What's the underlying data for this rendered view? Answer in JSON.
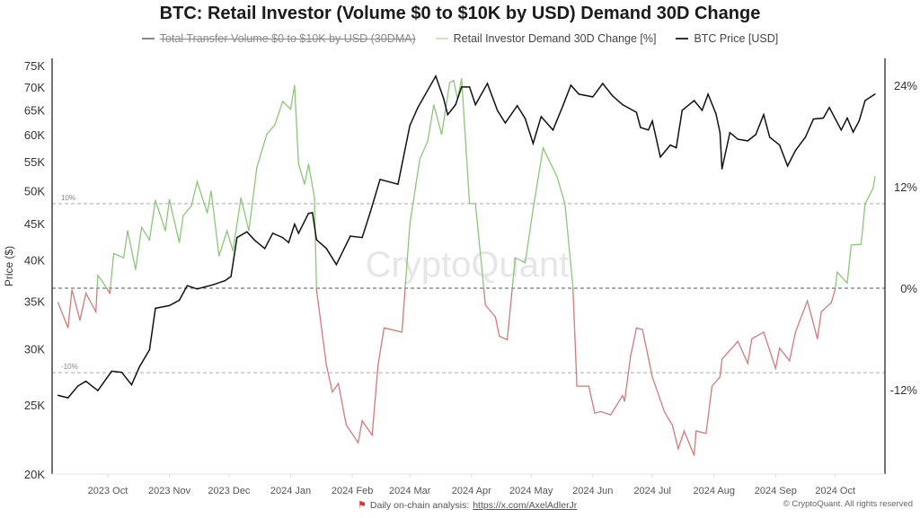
{
  "chart_data": {
    "type": "line",
    "title": "BTC: Retail Investor (Volume $0 to $10K by USD) Demand 30D Change",
    "legend": [
      {
        "name": "Total Transfer Volume $0 to $10K by USD (30DMA)",
        "color": "#888888",
        "hidden": true
      },
      {
        "name": "Retail Investor Demand 30D Change [%]",
        "color": "#8cc67a",
        "hidden": false
      },
      {
        "name": "BTC Price [USD]",
        "color": "#111111",
        "hidden": false
      }
    ],
    "legend_position": "top",
    "xlim": [
      "2023-09-03",
      "2024-10-26"
    ],
    "x_ticks": [
      {
        "date": "2023-10-01",
        "label": "2023 Oct"
      },
      {
        "date": "2023-11-01",
        "label": "2023 Nov"
      },
      {
        "date": "2023-12-01",
        "label": "2023 Dec"
      },
      {
        "date": "2024-01-01",
        "label": "2024 Jan"
      },
      {
        "date": "2024-02-01",
        "label": "2024 Feb"
      },
      {
        "date": "2024-03-01",
        "label": "2024 Mar"
      },
      {
        "date": "2024-04-01",
        "label": "2024 Apr"
      },
      {
        "date": "2024-05-01",
        "label": "2024 May"
      },
      {
        "date": "2024-06-01",
        "label": "2024 Jun"
      },
      {
        "date": "2024-07-01",
        "label": "2024 Jul"
      },
      {
        "date": "2024-08-01",
        "label": "2024 Aug"
      },
      {
        "date": "2024-09-01",
        "label": "2024 Sep"
      },
      {
        "date": "2024-10-01",
        "label": "2024 Oct"
      }
    ],
    "y_left": {
      "label": "Price ($)",
      "scale": "log",
      "range": [
        20000,
        76800
      ],
      "ticks": [
        {
          "value": 20000,
          "label": "20K"
        },
        {
          "value": 25000,
          "label": "25K"
        },
        {
          "value": 30000,
          "label": "30K"
        },
        {
          "value": 35000,
          "label": "35K"
        },
        {
          "value": 40000,
          "label": "40K"
        },
        {
          "value": 45000,
          "label": "45K"
        },
        {
          "value": 50000,
          "label": "50K"
        },
        {
          "value": 55000,
          "label": "55K"
        },
        {
          "value": 60000,
          "label": "60K"
        },
        {
          "value": 65000,
          "label": "65K"
        },
        {
          "value": 70000,
          "label": "70K"
        },
        {
          "value": 75000,
          "label": "75K"
        }
      ]
    },
    "y_right": {
      "scale": "linear",
      "range": [
        -22,
        27.2
      ],
      "ticks": [
        {
          "value": 24,
          "label": "24%"
        },
        {
          "value": 12,
          "label": "12%"
        },
        {
          "value": 0,
          "label": "0%"
        },
        {
          "value": -12,
          "label": "-12%"
        }
      ]
    },
    "reference_lines": [
      {
        "value": 10,
        "label": "10%"
      },
      {
        "value": 0,
        "label": ""
      },
      {
        "value": -10,
        "label": "-10%"
      }
    ],
    "demand_colors": {
      "positive": "#8cc67a",
      "negative": "#d27a7a"
    },
    "series": [
      {
        "name": "BTC Price [USD]",
        "axis": "left",
        "color": "#111111",
        "points": [
          [
            "2023-09-06",
            25800
          ],
          [
            "2023-09-11",
            25600
          ],
          [
            "2023-09-16",
            26600
          ],
          [
            "2023-09-20",
            27000
          ],
          [
            "2023-09-26",
            26200
          ],
          [
            "2023-10-03",
            27900
          ],
          [
            "2023-10-08",
            27800
          ],
          [
            "2023-10-13",
            26700
          ],
          [
            "2023-10-17",
            28300
          ],
          [
            "2023-10-22",
            29900
          ],
          [
            "2023-10-25",
            34200
          ],
          [
            "2023-11-01",
            34500
          ],
          [
            "2023-11-06",
            35100
          ],
          [
            "2023-11-10",
            36800
          ],
          [
            "2023-11-15",
            36400
          ],
          [
            "2023-11-23",
            36900
          ],
          [
            "2023-11-29",
            37400
          ],
          [
            "2023-12-02",
            37900
          ],
          [
            "2023-12-05",
            43000
          ],
          [
            "2023-12-10",
            43800
          ],
          [
            "2023-12-14",
            42600
          ],
          [
            "2023-12-19",
            41500
          ],
          [
            "2023-12-23",
            43600
          ],
          [
            "2023-12-28",
            43000
          ],
          [
            "2023-12-31",
            42300
          ],
          [
            "2024-01-03",
            44900
          ],
          [
            "2024-01-05",
            43600
          ],
          [
            "2024-01-10",
            46500
          ],
          [
            "2024-01-12",
            46600
          ],
          [
            "2024-01-14",
            42700
          ],
          [
            "2024-01-19",
            41500
          ],
          [
            "2024-01-24",
            39400
          ],
          [
            "2024-01-31",
            43200
          ],
          [
            "2024-02-06",
            43000
          ],
          [
            "2024-02-10",
            46600
          ],
          [
            "2024-02-15",
            51900
          ],
          [
            "2024-02-24",
            51100
          ],
          [
            "2024-03-01",
            61800
          ],
          [
            "2024-03-05",
            65500
          ],
          [
            "2024-03-14",
            72500
          ],
          [
            "2024-03-18",
            67400
          ],
          [
            "2024-03-20",
            64000
          ],
          [
            "2024-03-24",
            66100
          ],
          [
            "2024-03-27",
            70000
          ],
          [
            "2024-03-31",
            70000
          ],
          [
            "2024-04-03",
            66100
          ],
          [
            "2024-04-09",
            70800
          ],
          [
            "2024-04-14",
            64900
          ],
          [
            "2024-04-18",
            62300
          ],
          [
            "2024-04-24",
            65900
          ],
          [
            "2024-04-28",
            63200
          ],
          [
            "2024-05-02",
            58300
          ],
          [
            "2024-05-06",
            63600
          ],
          [
            "2024-05-12",
            60900
          ],
          [
            "2024-05-17",
            65900
          ],
          [
            "2024-05-21",
            70400
          ],
          [
            "2024-05-25",
            68400
          ],
          [
            "2024-06-01",
            67800
          ],
          [
            "2024-06-06",
            70800
          ],
          [
            "2024-06-11",
            68000
          ],
          [
            "2024-06-16",
            66100
          ],
          [
            "2024-06-23",
            64500
          ],
          [
            "2024-06-25",
            61400
          ],
          [
            "2024-06-29",
            60900
          ],
          [
            "2024-07-01",
            62700
          ],
          [
            "2024-07-05",
            55800
          ],
          [
            "2024-07-10",
            58000
          ],
          [
            "2024-07-13",
            57500
          ],
          [
            "2024-07-16",
            64900
          ],
          [
            "2024-07-22",
            67000
          ],
          [
            "2024-07-26",
            64900
          ],
          [
            "2024-07-29",
            68400
          ],
          [
            "2024-08-02",
            64200
          ],
          [
            "2024-08-04",
            60400
          ],
          [
            "2024-08-05",
            53700
          ],
          [
            "2024-08-09",
            60400
          ],
          [
            "2024-08-13",
            59100
          ],
          [
            "2024-08-18",
            58800
          ],
          [
            "2024-08-22",
            60000
          ],
          [
            "2024-08-26",
            64000
          ],
          [
            "2024-08-29",
            59500
          ],
          [
            "2024-09-03",
            58000
          ],
          [
            "2024-09-07",
            54200
          ],
          [
            "2024-09-11",
            57000
          ],
          [
            "2024-09-16",
            59500
          ],
          [
            "2024-09-20",
            63100
          ],
          [
            "2024-09-25",
            63300
          ],
          [
            "2024-09-28",
            65500
          ],
          [
            "2024-10-04",
            60900
          ],
          [
            "2024-10-07",
            63300
          ],
          [
            "2024-10-10",
            60500
          ],
          [
            "2024-10-13",
            62700
          ],
          [
            "2024-10-16",
            67000
          ],
          [
            "2024-10-21",
            68400
          ]
        ]
      },
      {
        "name": "Retail Investor Demand 30D Change [%]",
        "axis": "right",
        "color": "#8cc67a",
        "points": [
          [
            "2023-09-06",
            -1.7
          ],
          [
            "2023-09-11",
            -4.7
          ],
          [
            "2023-09-13",
            -0.2
          ],
          [
            "2023-09-17",
            -3.8
          ],
          [
            "2023-09-20",
            -0.6
          ],
          [
            "2023-09-25",
            -2.8
          ],
          [
            "2023-09-26",
            1.5
          ],
          [
            "2023-09-28",
            0.9
          ],
          [
            "2023-10-02",
            -0.6
          ],
          [
            "2023-10-04",
            4.1
          ],
          [
            "2023-10-09",
            3.6
          ],
          [
            "2023-10-11",
            6.8
          ],
          [
            "2023-10-15",
            2.2
          ],
          [
            "2023-10-18",
            7.2
          ],
          [
            "2023-10-22",
            5.7
          ],
          [
            "2023-10-25",
            10.4
          ],
          [
            "2023-10-30",
            6.8
          ],
          [
            "2023-11-01",
            10.5
          ],
          [
            "2023-11-06",
            5.4
          ],
          [
            "2023-11-08",
            8.6
          ],
          [
            "2023-11-12",
            9.7
          ],
          [
            "2023-11-15",
            12.6
          ],
          [
            "2023-11-20",
            8.9
          ],
          [
            "2023-11-22",
            11.5
          ],
          [
            "2023-11-26",
            3.8
          ],
          [
            "2023-11-30",
            6.8
          ],
          [
            "2023-12-03",
            4.4
          ],
          [
            "2023-12-07",
            10.7
          ],
          [
            "2023-12-11",
            6.8
          ],
          [
            "2023-12-15",
            14.3
          ],
          [
            "2023-12-20",
            18.2
          ],
          [
            "2023-12-24",
            19.3
          ],
          [
            "2023-12-28",
            22.1
          ],
          [
            "2024-01-01",
            21.2
          ],
          [
            "2024-01-03",
            24.0
          ],
          [
            "2024-01-05",
            14.7
          ],
          [
            "2024-01-08",
            12.3
          ],
          [
            "2024-01-10",
            14.7
          ],
          [
            "2024-01-13",
            10.7
          ],
          [
            "2024-01-14",
            -0.2
          ],
          [
            "2024-01-19",
            -9.1
          ],
          [
            "2024-01-22",
            -12.3
          ],
          [
            "2024-01-25",
            -11.3
          ],
          [
            "2024-01-29",
            -16.2
          ],
          [
            "2024-02-04",
            -18.3
          ],
          [
            "2024-02-06",
            -15.7
          ],
          [
            "2024-02-11",
            -17.4
          ],
          [
            "2024-02-14",
            -9.1
          ],
          [
            "2024-02-17",
            -4.7
          ],
          [
            "2024-02-26",
            -5.2
          ],
          [
            "2024-03-01",
            7.6
          ],
          [
            "2024-03-06",
            15.3
          ],
          [
            "2024-03-10",
            17.4
          ],
          [
            "2024-03-13",
            21.7
          ],
          [
            "2024-03-17",
            18.2
          ],
          [
            "2024-03-21",
            24.3
          ],
          [
            "2024-03-23",
            24.6
          ],
          [
            "2024-03-25",
            22.4
          ],
          [
            "2024-03-27",
            24.8
          ],
          [
            "2024-03-31",
            10.0
          ],
          [
            "2024-04-03",
            10.0
          ],
          [
            "2024-04-07",
            0.4
          ],
          [
            "2024-04-08",
            -2.0
          ],
          [
            "2024-04-13",
            -3.4
          ],
          [
            "2024-04-15",
            -5.7
          ],
          [
            "2024-04-19",
            -6.1
          ],
          [
            "2024-04-23",
            3.6
          ],
          [
            "2024-04-28",
            3.0
          ],
          [
            "2024-05-02",
            9.4
          ],
          [
            "2024-05-07",
            16.6
          ],
          [
            "2024-05-14",
            13.2
          ],
          [
            "2024-05-18",
            10.0
          ],
          [
            "2024-05-22",
            0.1
          ],
          [
            "2024-05-24",
            -11.6
          ],
          [
            "2024-05-30",
            -11.6
          ],
          [
            "2024-06-02",
            -14.8
          ],
          [
            "2024-06-05",
            -14.6
          ],
          [
            "2024-06-10",
            -15.0
          ],
          [
            "2024-06-16",
            -12.7
          ],
          [
            "2024-06-17",
            -13.4
          ],
          [
            "2024-06-20",
            -8.1
          ],
          [
            "2024-06-23",
            -4.7
          ],
          [
            "2024-06-26",
            -4.9
          ],
          [
            "2024-07-01",
            -10.5
          ],
          [
            "2024-07-07",
            -14.6
          ],
          [
            "2024-07-11",
            -16.2
          ],
          [
            "2024-07-14",
            -19.0
          ],
          [
            "2024-07-17",
            -16.9
          ],
          [
            "2024-07-22",
            -19.8
          ],
          [
            "2024-07-23",
            -16.9
          ],
          [
            "2024-07-28",
            -17.2
          ],
          [
            "2024-07-31",
            -11.6
          ],
          [
            "2024-08-04",
            -10.5
          ],
          [
            "2024-08-05",
            -8.4
          ],
          [
            "2024-08-13",
            -6.3
          ],
          [
            "2024-08-18",
            -8.9
          ],
          [
            "2024-08-20",
            -6.0
          ],
          [
            "2024-08-26",
            -5.2
          ],
          [
            "2024-09-01",
            -9.5
          ],
          [
            "2024-09-03",
            -7.1
          ],
          [
            "2024-09-08",
            -8.6
          ],
          [
            "2024-09-11",
            -5.2
          ],
          [
            "2024-09-17",
            -1.5
          ],
          [
            "2024-09-22",
            -6.0
          ],
          [
            "2024-09-24",
            -2.8
          ],
          [
            "2024-09-29",
            -1.7
          ],
          [
            "2024-10-01",
            -0.1
          ],
          [
            "2024-10-02",
            1.9
          ],
          [
            "2024-10-07",
            0.6
          ],
          [
            "2024-10-09",
            5.1
          ],
          [
            "2024-10-14",
            5.2
          ],
          [
            "2024-10-16",
            10.0
          ],
          [
            "2024-10-20",
            11.8
          ],
          [
            "2024-10-21",
            13.2
          ]
        ]
      }
    ]
  },
  "watermark": "CryptoQuant",
  "footer": {
    "flag_icon": "red-flag-icon",
    "text": "Daily on-chain analysis:",
    "link": "https://x.com/AxelAdlerJr",
    "copyright": "© CryptoQuant. All rights reserved"
  }
}
